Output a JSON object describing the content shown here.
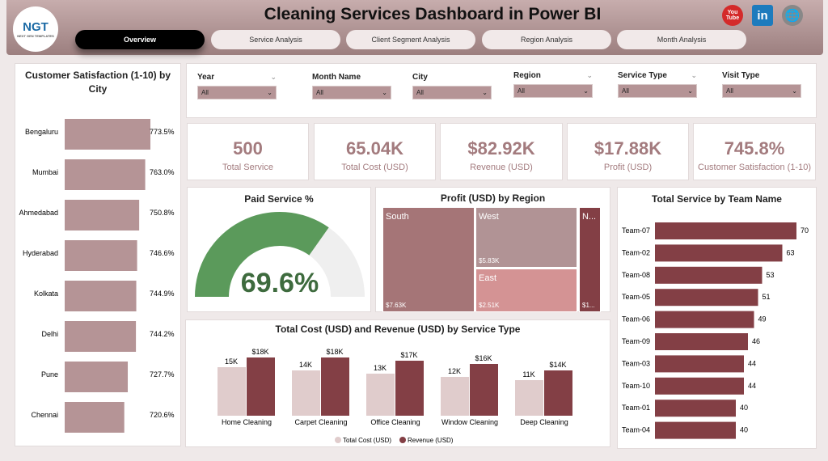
{
  "header": {
    "title": "Cleaning Services Dashboard in Power BI",
    "logo_text": "NGT",
    "logo_sub": "NEXT GEN TEMPLATES",
    "tabs": [
      {
        "label": "Overview",
        "active": true
      },
      {
        "label": "Service Analysis"
      },
      {
        "label": "Client Segment Analysis"
      },
      {
        "label": "Region Analysis"
      },
      {
        "label": "Month Analysis"
      }
    ],
    "social": [
      {
        "icon": "youtube-icon",
        "label": "You Tube"
      },
      {
        "icon": "linkedin-icon",
        "label": "in"
      },
      {
        "icon": "globe-icon",
        "label": "🌐"
      }
    ]
  },
  "filters": [
    {
      "label": "Year",
      "value": "All"
    },
    {
      "label": "Month Name",
      "value": "All"
    },
    {
      "label": "City",
      "value": "All"
    },
    {
      "label": "Region",
      "value": "All"
    },
    {
      "label": "Service Type",
      "value": "All"
    },
    {
      "label": "Visit Type",
      "value": "All"
    }
  ],
  "kpis": [
    {
      "value": "500",
      "label": "Total Service"
    },
    {
      "value": "65.04K",
      "label": "Total Cost (USD)"
    },
    {
      "value": "$82.92K",
      "label": "Revenue (USD)"
    },
    {
      "value": "$17.88K",
      "label": "Profit (USD)"
    },
    {
      "value": "745.8%",
      "label": "Customer Satisfaction (1-10)"
    }
  ],
  "colors": {
    "accent": "#a37b7e",
    "bar": "#b59496",
    "dark": "#833f45",
    "light": "#e0cccc",
    "gauge": "#5b9a5b"
  },
  "chart_data": [
    {
      "type": "bar",
      "orientation": "horizontal",
      "title": "Customer Satisfaction (1-10) by City",
      "categories": [
        "Bengaluru",
        "Mumbai",
        "Ahmedabad",
        "Hyderabad",
        "Kolkata",
        "Delhi",
        "Pune",
        "Chennai"
      ],
      "values": [
        773.5,
        763.0,
        750.8,
        746.6,
        744.9,
        744.2,
        727.7,
        720.6
      ],
      "labels": [
        "773.5%",
        "763.0%",
        "750.8%",
        "746.6%",
        "744.9%",
        "744.2%",
        "727.7%",
        "720.6%"
      ]
    },
    {
      "type": "gauge",
      "title": "Paid Service %",
      "value": 69.6,
      "label": "69.6%",
      "max": 100
    },
    {
      "type": "treemap",
      "title": "Profit (USD) by Region",
      "items": [
        {
          "name": "South",
          "label": "$7.63K",
          "value": 7.63,
          "color": "#a57577"
        },
        {
          "name": "West",
          "label": "$5.83K",
          "value": 5.83,
          "color": "#b19395"
        },
        {
          "name": "East",
          "label": "$2.51K",
          "value": 2.51,
          "color": "#d49394"
        },
        {
          "name": "N...",
          "label": "$1...",
          "value": 1.9,
          "color": "#833f45"
        }
      ]
    },
    {
      "type": "bar",
      "orientation": "horizontal",
      "title": "Total Service by Team Name",
      "categories": [
        "Team-07",
        "Team-02",
        "Team-08",
        "Team-05",
        "Team-06",
        "Team-09",
        "Team-03",
        "Team-10",
        "Team-01",
        "Team-04"
      ],
      "values": [
        70,
        63,
        53,
        51,
        49,
        46,
        44,
        44,
        40,
        40
      ]
    },
    {
      "type": "bar",
      "title": "Total Cost (USD) and Revenue (USD) by Service Type",
      "categories": [
        "Home Cleaning",
        "Carpet Cleaning",
        "Office Cleaning",
        "Window Cleaning",
        "Deep Cleaning"
      ],
      "series": [
        {
          "name": "Total Cost (USD)",
          "values": [
            15,
            14,
            13,
            12,
            11
          ],
          "labels": [
            "15K",
            "14K",
            "13K",
            "12K",
            "11K"
          ]
        },
        {
          "name": "Revenue (USD)",
          "values": [
            18,
            18,
            17,
            16,
            14
          ],
          "labels": [
            "$18K",
            "$18K",
            "$17K",
            "$16K",
            "$14K"
          ]
        }
      ],
      "legend": "bottom"
    }
  ]
}
